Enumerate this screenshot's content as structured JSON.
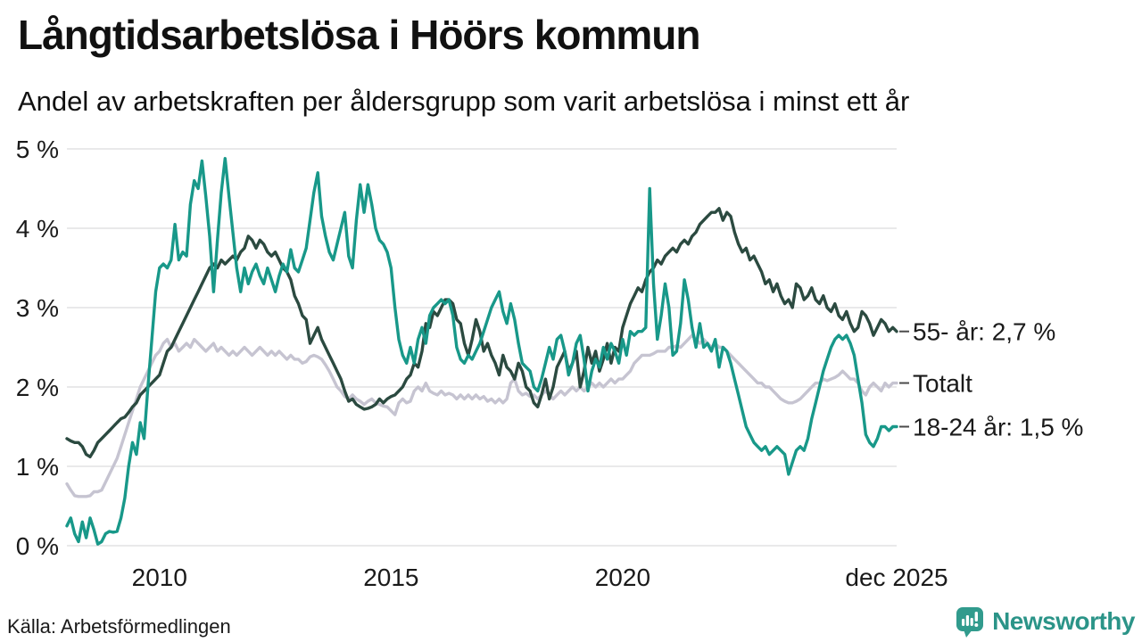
{
  "header": {
    "title": "Långtidsarbetslösa i Höörs kommun",
    "subtitle": "Andel av arbetskraften per åldersgrupp som varit arbetslösa i minst ett år"
  },
  "footer": {
    "source": "Källa: Arbetsförmedlingen",
    "brand_name": "Newsworthy",
    "brand_icon": "newsworthy-chart-bubble-icon",
    "brand_color": "#2b9488"
  },
  "colors": {
    "grid": "#e2e2e4",
    "text": "#1a1a1a",
    "series_55": "#2b4a40",
    "series_total": "#c6c4d1",
    "series_18_24": "#189889"
  },
  "chart_data": {
    "type": "line",
    "title": "Långtidsarbetslösa i Höörs kommun",
    "subtitle": "Andel av arbetskraften per åldersgrupp som varit arbetslösa i minst ett år",
    "unit": "% av arbetskraften",
    "x_start": "2008-01",
    "x_end": "2025-12",
    "x_interval": "monthly",
    "grid": "horizontal",
    "legend_position": "right-end-labels",
    "ylim": [
      0,
      5
    ],
    "y_axis": {
      "ticks": [
        {
          "value": 0,
          "label": "0 %"
        },
        {
          "value": 1,
          "label": "1 %"
        },
        {
          "value": 2,
          "label": "2 %"
        },
        {
          "value": 3,
          "label": "3 %"
        },
        {
          "value": 4,
          "label": "4 %"
        },
        {
          "value": 5,
          "label": "5 %"
        }
      ]
    },
    "x_axis": {
      "ticks": [
        {
          "label": "2010",
          "month_index": 24
        },
        {
          "label": "2015",
          "month_index": 84
        },
        {
          "label": "2020",
          "month_index": 144
        },
        {
          "label": "dec 2025",
          "month_index": 215
        }
      ]
    },
    "draw_order": [
      "Totalt",
      "55- år",
      "18-24 år"
    ],
    "series": [
      {
        "name": "55- år",
        "end_label": "55- år: 2,7 %",
        "end_value": "2,7 %",
        "color": "#2b4a40",
        "values": [
          1.35,
          1.32,
          1.3,
          1.3,
          1.25,
          1.15,
          1.12,
          1.2,
          1.3,
          1.35,
          1.4,
          1.45,
          1.5,
          1.55,
          1.6,
          1.62,
          1.68,
          1.75,
          1.8,
          1.9,
          1.95,
          2.0,
          2.05,
          2.1,
          2.15,
          2.3,
          2.45,
          2.5,
          2.6,
          2.7,
          2.8,
          2.9,
          3.0,
          3.1,
          3.2,
          3.3,
          3.4,
          3.5,
          3.55,
          3.5,
          3.6,
          3.55,
          3.6,
          3.65,
          3.6,
          3.7,
          3.75,
          3.9,
          3.85,
          3.75,
          3.85,
          3.8,
          3.7,
          3.65,
          3.7,
          3.6,
          3.5,
          3.45,
          3.35,
          3.15,
          3.05,
          2.9,
          2.85,
          2.55,
          2.65,
          2.75,
          2.6,
          2.5,
          2.4,
          2.3,
          2.2,
          2.1,
          1.95,
          1.82,
          1.85,
          1.78,
          1.75,
          1.72,
          1.73,
          1.75,
          1.78,
          1.85,
          1.8,
          1.85,
          1.88,
          1.9,
          1.95,
          2.0,
          2.1,
          2.15,
          2.3,
          2.25,
          2.45,
          2.8,
          2.75,
          2.95,
          2.9,
          3.0,
          3.1,
          3.1,
          3.05,
          2.85,
          2.8,
          2.55,
          2.4,
          2.6,
          2.85,
          2.7,
          2.45,
          2.55,
          2.4,
          2.3,
          2.15,
          2.4,
          2.25,
          2.2,
          2.1,
          2.3,
          2.2,
          2.0,
          1.95,
          1.8,
          1.75,
          1.9,
          2.1,
          1.85,
          2.0,
          2.25,
          2.35,
          2.45,
          2.2,
          2.3,
          2.45,
          2.0,
          2.2,
          2.5,
          2.3,
          2.45,
          2.2,
          2.35,
          2.55,
          2.3,
          2.5,
          2.45,
          2.75,
          2.9,
          3.05,
          3.15,
          3.25,
          3.2,
          3.35,
          3.45,
          3.5,
          3.6,
          3.55,
          3.65,
          3.7,
          3.75,
          3.7,
          3.8,
          3.85,
          3.8,
          3.9,
          3.95,
          4.05,
          4.1,
          4.15,
          4.2,
          4.2,
          4.25,
          4.1,
          4.2,
          4.15,
          3.95,
          3.8,
          3.7,
          3.75,
          3.6,
          3.65,
          3.55,
          3.45,
          3.3,
          3.35,
          3.2,
          3.3,
          3.15,
          3.05,
          3.1,
          3.0,
          3.3,
          3.25,
          3.1,
          3.15,
          3.25,
          3.1,
          3.05,
          3.15,
          3.0,
          2.95,
          3.05,
          2.9,
          2.85,
          2.95,
          2.8,
          2.7,
          2.75,
          2.95,
          2.9,
          2.8,
          2.65,
          2.75,
          2.85,
          2.8,
          2.7,
          2.75,
          2.7
        ]
      },
      {
        "name": "Totalt",
        "end_label": "Totalt",
        "end_value": "",
        "color": "#c6c4d1",
        "values": [
          0.78,
          0.7,
          0.63,
          0.62,
          0.62,
          0.62,
          0.63,
          0.68,
          0.68,
          0.7,
          0.8,
          0.9,
          1.0,
          1.1,
          1.25,
          1.4,
          1.55,
          1.7,
          1.85,
          2.0,
          2.1,
          2.2,
          2.3,
          2.4,
          2.45,
          2.55,
          2.6,
          2.5,
          2.55,
          2.45,
          2.5,
          2.55,
          2.5,
          2.6,
          2.55,
          2.5,
          2.45,
          2.5,
          2.55,
          2.45,
          2.5,
          2.45,
          2.4,
          2.45,
          2.4,
          2.45,
          2.5,
          2.45,
          2.4,
          2.45,
          2.5,
          2.45,
          2.4,
          2.45,
          2.4,
          2.45,
          2.4,
          2.35,
          2.4,
          2.35,
          2.35,
          2.3,
          2.32,
          2.38,
          2.4,
          2.38,
          2.35,
          2.28,
          2.2,
          2.1,
          2.0,
          1.95,
          1.88,
          1.85,
          1.9,
          1.85,
          1.82,
          1.78,
          1.82,
          1.85,
          1.8,
          1.78,
          1.76,
          1.75,
          1.7,
          1.65,
          1.8,
          1.85,
          1.8,
          1.82,
          1.95,
          2.0,
          1.95,
          2.05,
          1.95,
          1.92,
          1.9,
          1.95,
          1.9,
          1.92,
          1.9,
          1.85,
          1.9,
          1.85,
          1.9,
          1.85,
          1.9,
          1.85,
          1.88,
          1.82,
          1.85,
          1.8,
          1.85,
          1.8,
          1.85,
          2.05,
          2.1,
          1.95,
          1.9,
          1.92,
          1.88,
          1.9,
          1.85,
          1.9,
          1.95,
          1.9,
          1.85,
          1.9,
          1.95,
          1.9,
          1.95,
          2.0,
          1.95,
          2.0,
          1.95,
          2.0,
          2.05,
          2.0,
          2.05,
          2.0,
          2.05,
          2.1,
          2.05,
          2.1,
          2.1,
          2.15,
          2.2,
          2.3,
          2.35,
          2.4,
          2.4,
          2.4,
          2.42,
          2.45,
          2.45,
          2.45,
          2.5,
          2.5,
          2.52,
          2.5,
          2.55,
          2.6,
          2.65,
          2.6,
          2.55,
          2.6,
          2.55,
          2.5,
          2.55,
          2.5,
          2.5,
          2.45,
          2.4,
          2.35,
          2.3,
          2.25,
          2.2,
          2.15,
          2.1,
          2.05,
          2.05,
          2.0,
          2.0,
          1.95,
          1.9,
          1.85,
          1.82,
          1.8,
          1.8,
          1.82,
          1.85,
          1.9,
          1.95,
          2.0,
          2.05,
          2.05,
          2.1,
          2.08,
          2.1,
          2.12,
          2.15,
          2.2,
          2.15,
          2.1,
          2.1,
          2.05,
          1.95,
          1.9,
          2.0,
          2.05,
          2.0,
          1.95,
          2.05,
          2.0,
          2.05,
          2.05
        ]
      },
      {
        "name": "18-24 år",
        "end_label": "18-24 år: 1,5 %",
        "end_value": "1,5 %",
        "color": "#189889",
        "values": [
          0.25,
          0.35,
          0.15,
          0.05,
          0.3,
          0.1,
          0.35,
          0.2,
          0.02,
          0.05,
          0.15,
          0.18,
          0.17,
          0.18,
          0.35,
          0.6,
          1.0,
          1.3,
          1.15,
          1.55,
          1.35,
          2.0,
          2.6,
          3.2,
          3.5,
          3.55,
          3.5,
          3.6,
          4.05,
          3.6,
          3.7,
          3.65,
          4.3,
          4.6,
          4.5,
          4.85,
          4.4,
          3.9,
          3.2,
          3.85,
          4.45,
          4.88,
          4.4,
          3.95,
          3.5,
          3.2,
          3.5,
          3.3,
          3.45,
          3.55,
          3.4,
          3.3,
          3.5,
          3.35,
          3.2,
          3.4,
          3.55,
          3.45,
          3.73,
          3.5,
          3.45,
          3.6,
          3.75,
          4.1,
          4.45,
          4.7,
          4.15,
          3.9,
          3.7,
          3.6,
          3.8,
          4.0,
          4.2,
          3.65,
          3.5,
          4.1,
          4.55,
          4.2,
          4.55,
          4.3,
          4.0,
          3.85,
          3.8,
          3.7,
          3.5,
          3.0,
          2.6,
          2.4,
          2.3,
          2.5,
          2.3,
          2.6,
          2.75,
          2.55,
          2.9,
          3.0,
          3.05,
          3.1,
          3.05,
          3.1,
          2.9,
          2.5,
          2.35,
          2.3,
          2.4,
          2.35,
          2.45,
          2.55,
          2.7,
          2.85,
          3.0,
          3.1,
          3.2,
          2.95,
          2.8,
          3.05,
          2.85,
          2.55,
          2.3,
          2.25,
          2.2,
          2.0,
          1.95,
          2.1,
          2.3,
          2.5,
          2.35,
          2.6,
          2.65,
          2.45,
          2.15,
          2.3,
          2.55,
          2.65,
          2.35,
          1.95,
          2.2,
          2.35,
          2.25,
          2.5,
          2.35,
          2.55,
          2.45,
          2.3,
          2.6,
          2.4,
          2.7,
          2.65,
          2.7,
          2.7,
          2.75,
          4.5,
          3.3,
          2.6,
          2.9,
          3.3,
          3.0,
          2.4,
          2.45,
          2.8,
          3.35,
          3.1,
          2.75,
          2.5,
          2.8,
          2.5,
          2.55,
          2.45,
          2.6,
          2.25,
          2.5,
          2.45,
          2.3,
          2.1,
          1.9,
          1.7,
          1.5,
          1.4,
          1.3,
          1.25,
          1.2,
          1.25,
          1.15,
          1.2,
          1.25,
          1.2,
          1.15,
          0.9,
          1.05,
          1.2,
          1.25,
          1.2,
          1.35,
          1.6,
          1.8,
          2.0,
          2.2,
          2.35,
          2.5,
          2.6,
          2.65,
          2.6,
          2.65,
          2.55,
          2.4,
          2.1,
          1.8,
          1.4,
          1.3,
          1.25,
          1.35,
          1.5,
          1.5,
          1.45,
          1.5,
          1.5
        ]
      }
    ]
  }
}
